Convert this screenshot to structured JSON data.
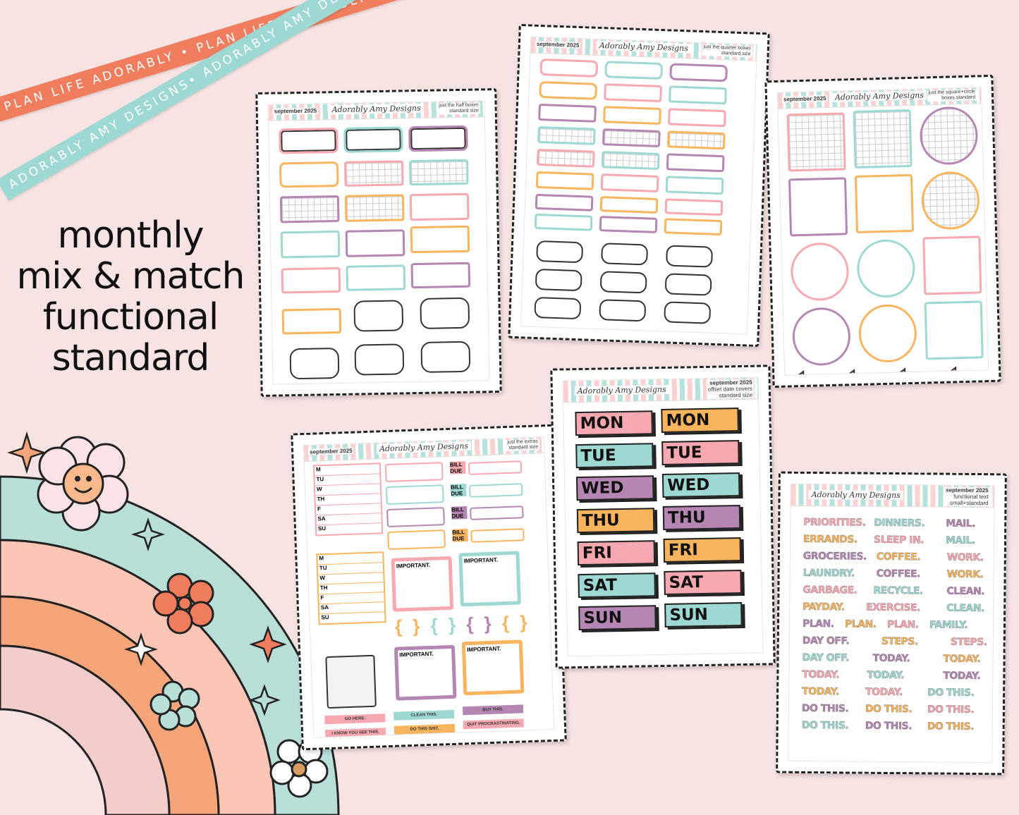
{
  "ribbons": {
    "coral_text": "PLAN LIFE ADORABLY • PLAN LIFE ADORABLY • PLAN LIFE ADORABLY •",
    "teal_text": "ADORABLY AMY DESIGNS• ADORABLY AMY DESIGNS• ADORABLY AMY DESIGNS•"
  },
  "headline": [
    "monthly",
    "mix & match",
    "functional",
    "standard"
  ],
  "colors": {
    "background": "#f7e3e2",
    "pink": "#f7a8b0",
    "teal": "#9ed8d2",
    "purple": "#b586b3",
    "orange": "#f9b45e",
    "coral": "#f07e5e"
  },
  "sheets": {
    "half": {
      "month": "september 2025",
      "logo": "Adorably Amy Designs",
      "line1": "just the half boxes",
      "line2": "standard size"
    },
    "quarter": {
      "month": "september 2025",
      "logo": "Adorably Amy Designs",
      "line1": "just the quarter boxes",
      "line2": "standard size"
    },
    "square": {
      "month": "september 2025",
      "logo": "Adorably Amy Designs",
      "line1": "just the square+circle",
      "line2": "boxes standard"
    },
    "extras": {
      "month": "september 2025",
      "logo": "Adorably Amy Designs",
      "line1": "just the extras",
      "line2": "standard size",
      "days": [
        "M",
        "TU",
        "W",
        "TH",
        "F",
        "SA",
        "SU"
      ],
      "bill_due": "BILL DUE",
      "important": "IMPORTANT.",
      "labels": [
        "GO HERE.",
        "CLEAN THIS.",
        "BUY THIS.",
        "I KNOW YOU SEE THIS.",
        "DO THIS SHIT.",
        "QUIT PROCRASTINATING."
      ]
    },
    "date_covers": {
      "month": "september 2025",
      "logo": "Adorably Amy Designs",
      "line1": "offset date covers",
      "line2": "standard size",
      "left": [
        "MON",
        "TUE",
        "WED",
        "THU",
        "FRI",
        "SAT",
        "SUN"
      ],
      "right": [
        "MON",
        "TUE",
        "WED",
        "THU",
        "FRI",
        "SAT",
        "SUN"
      ]
    },
    "functional_text": {
      "month": "september 2025",
      "logo": "Adorably Amy Designs",
      "line1": "functional text",
      "line2": "small+standard",
      "words": [
        [
          "PRIORITIES.",
          "DINNERS.",
          "MAIL."
        ],
        [
          "ERRANDS.",
          "SLEEP IN.",
          "MAIL."
        ],
        [
          "GROCERIES.",
          "COFFEE.",
          "WORK."
        ],
        [
          "LAUNDRY.",
          "COFFEE.",
          "WORK."
        ],
        [
          "GARBAGE.",
          "RECYCLE.",
          "CLEAN."
        ],
        [
          "PAYDAY.",
          "EXERCISE.",
          "CLEAN."
        ],
        [
          "PLAN.",
          "PLAN.",
          "PLAN.",
          "FAMILY."
        ],
        [
          "DAY OFF.",
          "STEPS.",
          "STEPS."
        ],
        [
          "DAY OFF.",
          "TODAY.",
          "TODAY."
        ],
        [
          "TODAY.",
          "TODAY.",
          "TODAY."
        ],
        [
          "TODAY.",
          "TODAY.",
          "DO THIS."
        ],
        [
          "DO THIS.",
          "DO THIS.",
          "DO THIS."
        ],
        [
          "DO THIS.",
          "DO THIS.",
          "DO THIS."
        ]
      ]
    }
  }
}
